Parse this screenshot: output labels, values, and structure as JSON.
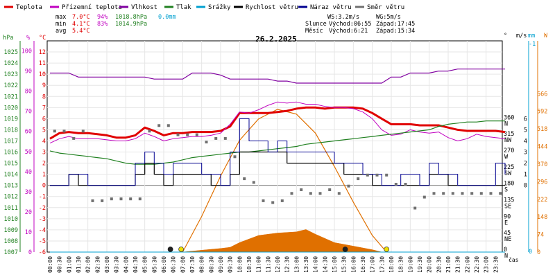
{
  "chart_data": {
    "type": "line",
    "title": "26.2.2025",
    "x_unit_label": "čas",
    "legend": [
      {
        "name": "Teplota",
        "color": "#e00000"
      },
      {
        "name": "Přízemní teplota",
        "color": "#c000c0"
      },
      {
        "name": "Vlhkost",
        "color": "#8000a0"
      },
      {
        "name": "Tlak",
        "color": "#208020"
      },
      {
        "name": "Srážky",
        "color": "#00a0d0"
      },
      {
        "name": "Rychlost větru",
        "color": "#000000"
      },
      {
        "name": "Náraz větru",
        "color": "#000090"
      },
      {
        "name": "Směr větru",
        "color": "#707070"
      }
    ],
    "stats": {
      "max": {
        "label": "max",
        "temp": "7.0°C",
        "hum": "94%",
        "press": "1018.8hPa",
        "rain": "0.0mm"
      },
      "min": {
        "label": "min",
        "temp": "4.1°C",
        "hum": "83%",
        "press": "1014.9hPa"
      },
      "avg": {
        "label": "avg",
        "temp": "5.4°C"
      }
    },
    "wind_info": {
      "ws": "WS:3.2m/s",
      "wg": "WG:5m/s"
    },
    "sun": {
      "label": "Slunce",
      "rise": "Východ:06:55",
      "set": "Západ:17:45"
    },
    "moon": {
      "label": "Měsíc",
      "rise": "Východ:6:21",
      "set": "Západ:15:34"
    },
    "axes": {
      "pressure": {
        "unit": "hPa",
        "color": "#208020",
        "min": 1007,
        "max": 1026,
        "ticks": [
          1007,
          1008,
          1009,
          1010,
          1011,
          1012,
          1013,
          1014,
          1015,
          1016,
          1017,
          1018,
          1019,
          1020,
          1021,
          1022,
          1023,
          1024,
          1025
        ]
      },
      "humidity": {
        "unit": "%",
        "color": "#c000c0",
        "min": 0,
        "max": 105,
        "ticks": [
          0,
          10,
          20,
          30,
          40,
          50,
          60,
          70,
          80,
          90,
          100
        ]
      },
      "temperature": {
        "unit": "°C",
        "color": "#e00000",
        "min": -6,
        "max": 13,
        "ticks": [
          -6,
          -5,
          -4,
          -3,
          -2,
          -1,
          0,
          1,
          2,
          3,
          4,
          5,
          6,
          7,
          8,
          9,
          10,
          11,
          12
        ]
      },
      "direction": {
        "unit": "°",
        "min": 0,
        "max": 360,
        "ticks": [
          {
            "v": 0,
            "deg": "0",
            "dir": "N"
          },
          {
            "v": 45,
            "deg": "45",
            "dir": "NE"
          },
          {
            "v": 90,
            "deg": "90",
            "dir": "E"
          },
          {
            "v": 135,
            "deg": "135",
            "dir": "SE"
          },
          {
            "v": 180,
            "deg": "180",
            "dir": "S"
          },
          {
            "v": 225,
            "deg": "225",
            "dir": "SW"
          },
          {
            "v": 270,
            "deg": "270",
            "dir": "W"
          },
          {
            "v": 315,
            "deg": "315",
            "dir": "NW"
          },
          {
            "v": 360,
            "deg": "360",
            "dir": "N"
          }
        ]
      },
      "wind": {
        "unit": "m/s",
        "min": 0,
        "max": 12,
        "ticks": [
          0,
          1,
          2,
          3,
          4,
          5,
          6
        ]
      },
      "rain": {
        "unit": "mm",
        "min": 0,
        "max": 1,
        "ticks": [
          0,
          1
        ]
      },
      "solar": {
        "unit": "W",
        "color": "#e07000",
        "min": 0,
        "max": 888,
        "ticks": [
          0,
          74,
          148,
          222,
          296,
          370,
          444,
          518,
          592,
          666
        ]
      },
      "time_ticks": [
        "00:00",
        "00:30",
        "01:00",
        "01:30",
        "02:00",
        "02:30",
        "03:00",
        "03:30",
        "04:00",
        "04:30",
        "05:00",
        "05:30",
        "06:00",
        "06:30",
        "07:00",
        "07:30",
        "08:00",
        "08:30",
        "09:00",
        "09:30",
        "10:00",
        "10:30",
        "11:00",
        "11:30",
        "12:00",
        "12:30",
        "13:00",
        "13:30",
        "14:00",
        "14:30",
        "15:00",
        "15:30",
        "16:00",
        "16:30",
        "17:00",
        "17:30",
        "18:00",
        "18:30",
        "19:00",
        "19:30",
        "20:00",
        "20:30",
        "21:00",
        "21:30",
        "22:00",
        "22:30",
        "23:00",
        "23:30"
      ]
    },
    "series": [
      {
        "name": "Teplota",
        "axis": "temperature",
        "color": "#e00000",
        "x": [
          0,
          0.5,
          1,
          1.5,
          2,
          2.5,
          3,
          3.5,
          4,
          4.5,
          5,
          5.5,
          6,
          6.5,
          7,
          7.5,
          8,
          8.5,
          9,
          9.5,
          10,
          10.5,
          11,
          11.5,
          12,
          12.5,
          13,
          13.5,
          14,
          14.5,
          15,
          15.5,
          16,
          16.5,
          17,
          17.5,
          18,
          18.5,
          19,
          19.5,
          20,
          20.5,
          21,
          21.5,
          22,
          22.5,
          23,
          23.5,
          24
        ],
        "y": [
          4.2,
          4.7,
          4.8,
          4.7,
          4.7,
          4.6,
          4.5,
          4.3,
          4.3,
          4.5,
          5.2,
          4.9,
          4.5,
          4.7,
          4.7,
          4.8,
          4.8,
          4.8,
          4.9,
          5.3,
          6.5,
          6.5,
          6.5,
          6.5,
          6.6,
          6.7,
          6.9,
          7.0,
          7.0,
          6.9,
          7.0,
          7.0,
          7.0,
          6.9,
          6.5,
          6.0,
          5.5,
          5.5,
          5.5,
          5.4,
          5.4,
          5.4,
          5.2,
          5.0,
          4.9,
          4.9,
          4.9,
          4.9,
          4.8
        ]
      },
      {
        "name": "Přízemní teplota",
        "axis": "temperature",
        "color": "#c000c0",
        "x": [
          0,
          0.5,
          1,
          1.5,
          2,
          2.5,
          3,
          3.5,
          4,
          4.5,
          5,
          5.5,
          6,
          6.5,
          7,
          7.5,
          8,
          8.5,
          9,
          9.5,
          10,
          10.5,
          11,
          11.5,
          12,
          12.5,
          13,
          13.5,
          14,
          14.5,
          15,
          15.5,
          16,
          16.5,
          17,
          17.5,
          18,
          18.5,
          19,
          19.5,
          20,
          20.5,
          21,
          21.5,
          22,
          22.5,
          23,
          23.5,
          24
        ],
        "y": [
          3.8,
          4.2,
          4.4,
          4.2,
          4.2,
          4.2,
          4.1,
          4.0,
          4.0,
          4.2,
          4.7,
          4.4,
          4.0,
          4.2,
          4.3,
          4.4,
          4.4,
          4.5,
          4.7,
          5.5,
          6.6,
          6.5,
          6.8,
          7.2,
          7.5,
          7.4,
          7.5,
          7.3,
          7.3,
          7.1,
          7.0,
          7.0,
          6.9,
          6.6,
          6.0,
          5.0,
          4.5,
          4.6,
          5.0,
          4.8,
          4.7,
          4.8,
          4.3,
          4.0,
          4.2,
          4.6,
          4.4,
          4.3,
          4.2
        ]
      },
      {
        "name": "Vlhkost",
        "axis": "humidity",
        "color": "#8000a0",
        "x": [
          0,
          0.5,
          1,
          1.5,
          2,
          2.5,
          3,
          3.5,
          4,
          4.5,
          5,
          5.5,
          6,
          6.5,
          7,
          7.5,
          8,
          8.5,
          9,
          9.5,
          10,
          10.5,
          11,
          11.5,
          12,
          12.5,
          13,
          13.5,
          14,
          14.5,
          15,
          15.5,
          16,
          16.5,
          17,
          17.5,
          18,
          18.5,
          19,
          19.5,
          20,
          20.5,
          21,
          21.5,
          22,
          22.5,
          23,
          23.5,
          24
        ],
        "y": [
          89,
          89,
          89,
          87,
          87,
          87,
          87,
          87,
          87,
          87,
          87,
          86,
          86,
          86,
          86,
          89,
          89,
          89,
          88,
          86,
          86,
          86,
          86,
          86,
          85,
          85,
          84,
          84,
          84,
          84,
          84,
          84,
          84,
          84,
          84,
          84,
          87,
          87,
          89,
          89,
          89,
          90,
          90,
          91,
          91,
          91,
          91,
          91,
          91
        ]
      },
      {
        "name": "Tlak",
        "axis": "pressure",
        "color": "#208020",
        "x": [
          0,
          0.5,
          1,
          1.5,
          2,
          2.5,
          3,
          3.5,
          4,
          4.5,
          5,
          5.5,
          6,
          6.5,
          7,
          7.5,
          8,
          8.5,
          9,
          9.5,
          10,
          10.5,
          11,
          11.5,
          12,
          12.5,
          13,
          13.5,
          14,
          14.5,
          15,
          15.5,
          16,
          16.5,
          17,
          17.5,
          18,
          18.5,
          19,
          19.5,
          20,
          20.5,
          21,
          21.5,
          22,
          22.5,
          23,
          23.5,
          24
        ],
        "y": [
          1016.1,
          1015.9,
          1015.8,
          1015.7,
          1015.6,
          1015.5,
          1015.4,
          1015.2,
          1015.0,
          1014.9,
          1014.9,
          1014.9,
          1015.0,
          1015.1,
          1015.3,
          1015.5,
          1015.6,
          1015.7,
          1015.8,
          1015.9,
          1016.0,
          1016.0,
          1016.1,
          1016.2,
          1016.3,
          1016.4,
          1016.5,
          1016.7,
          1016.8,
          1016.9,
          1017.0,
          1017.1,
          1017.2,
          1017.3,
          1017.4,
          1017.5,
          1017.6,
          1017.7,
          1017.8,
          1017.9,
          1018.0,
          1018.3,
          1018.5,
          1018.6,
          1018.7,
          1018.7,
          1018.8,
          1018.8,
          1018.8
        ]
      },
      {
        "name": "Rychlost větru",
        "axis": "wind",
        "color": "#000000",
        "x": [
          0,
          0.5,
          1,
          1.5,
          2,
          2.5,
          3,
          3.5,
          4,
          4.5,
          5,
          5.5,
          6,
          6.5,
          7,
          7.5,
          8,
          8.5,
          9,
          9.5,
          10,
          10.5,
          11,
          11.5,
          12,
          12.5,
          13,
          13.5,
          14,
          14.5,
          15,
          15.5,
          16,
          16.5,
          17,
          17.5,
          18,
          18.5,
          19,
          19.5,
          20,
          20.5,
          21,
          21.5,
          22,
          22.5,
          23,
          23.5,
          24
        ],
        "y": [
          0,
          0,
          1,
          0,
          0,
          0,
          0,
          0,
          0,
          1,
          2,
          1,
          0,
          1,
          1,
          1,
          1,
          0,
          0,
          1,
          3,
          3,
          3,
          3,
          3,
          2,
          2,
          2,
          2,
          2,
          2,
          1,
          1,
          1,
          0,
          0,
          0,
          0,
          0,
          0,
          1,
          1,
          0,
          0,
          0,
          0,
          0,
          0,
          0
        ]
      },
      {
        "name": "Náraz větru",
        "axis": "wind",
        "color": "#000090",
        "x": [
          0,
          0.5,
          1,
          1.5,
          2,
          2.5,
          3,
          3.5,
          4,
          4.5,
          5,
          5.5,
          6,
          6.5,
          7,
          7.5,
          8,
          8.5,
          9,
          9.5,
          10,
          10.5,
          11,
          11.5,
          12,
          12.5,
          13,
          13.5,
          14,
          14.5,
          15,
          15.5,
          16,
          16.5,
          17,
          17.5,
          18,
          18.5,
          19,
          19.5,
          20,
          20.5,
          21,
          21.5,
          22,
          22.5,
          23,
          23.5,
          24
        ],
        "y": [
          0,
          0,
          1,
          1,
          0,
          0,
          0,
          0,
          0,
          2,
          3,
          2,
          1,
          2,
          2,
          2,
          1,
          1,
          0,
          3,
          6,
          4,
          4,
          3,
          4,
          3,
          3,
          3,
          3,
          3,
          2,
          2,
          2,
          1,
          1,
          0,
          0,
          1,
          1,
          0,
          2,
          1,
          1,
          0,
          0,
          0,
          0,
          2,
          1
        ]
      },
      {
        "name": "Směr větru",
        "axis": "direction",
        "color": "#707070",
        "x": [
          0.25,
          0.75,
          1.25,
          1.75,
          2.25,
          2.75,
          3.25,
          3.75,
          4.25,
          4.75,
          5.25,
          5.75,
          6.25,
          6.75,
          7.25,
          7.75,
          8.25,
          8.75,
          9.25,
          9.75,
          10.25,
          10.75,
          11.25,
          11.75,
          12.25,
          12.75,
          13.25,
          13.75,
          14.25,
          14.75,
          15.25,
          15.75,
          16.25,
          16.75,
          17.25,
          17.75,
          18.25,
          18.75,
          19.25,
          19.75,
          20.25,
          20.75,
          21.25,
          21.75,
          22.25,
          22.75,
          23.25,
          23.75
        ],
        "y": [
          330,
          330,
          310,
          330,
          140,
          140,
          145,
          145,
          145,
          145,
          330,
          345,
          345,
          320,
          320,
          320,
          300,
          310,
          310,
          260,
          200,
          190,
          140,
          135,
          140,
          160,
          170,
          160,
          160,
          170,
          160,
          180,
          200,
          210,
          210,
          210,
          185,
          185,
          120,
          150,
          160,
          160,
          160,
          160,
          160,
          160,
          160,
          160
        ]
      },
      {
        "name": "Srážky",
        "axis": "rain",
        "color": "#00a0d0",
        "x": [
          0,
          24
        ],
        "y": [
          0,
          0
        ]
      }
    ],
    "solar_radiation": {
      "axis": "solar",
      "color": "#e07000",
      "theoretical": {
        "x": [
          7.0,
          8,
          9,
          10,
          11,
          12,
          13,
          14,
          15,
          16,
          17,
          17.75
        ],
        "y": [
          0,
          150,
          320,
          470,
          560,
          600,
          580,
          500,
          360,
          210,
          70,
          0
        ]
      },
      "measured": {
        "x": [
          7.0,
          8,
          9,
          9.5,
          10,
          11,
          12,
          13,
          13.5,
          14,
          15,
          16,
          17,
          17.5
        ],
        "y": [
          0,
          8,
          15,
          20,
          40,
          70,
          80,
          85,
          95,
          75,
          40,
          25,
          10,
          0
        ]
      }
    },
    "markers": [
      {
        "kind": "sunrise",
        "x": 6.92,
        "color": "#f0e000"
      },
      {
        "kind": "sunset",
        "x": 17.75,
        "color": "#f0e000"
      },
      {
        "kind": "moonrise",
        "x": 6.35,
        "color": "#202020"
      },
      {
        "kind": "moonset",
        "x": 15.57,
        "color": "#202020"
      }
    ]
  }
}
